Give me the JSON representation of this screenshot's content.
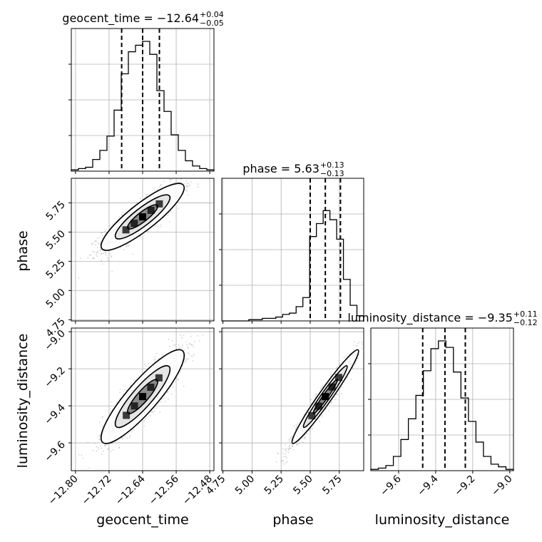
{
  "chart_data": {
    "type": "corner",
    "parameters": [
      "geocent_time",
      "phase",
      "luminosity_distance"
    ],
    "titles": [
      {
        "name": "geocent_time",
        "prefix": "geocent_time = ",
        "median": "−12.64",
        "plus": "+0.04",
        "minus": "−0.05"
      },
      {
        "name": "phase",
        "prefix": "phase = ",
        "median": "5.63",
        "plus": "+0.13",
        "minus": "−0.13"
      },
      {
        "name": "luminosity_distance",
        "prefix": "luminosity_distance = ",
        "median": "−9.35",
        "plus": "+0.11",
        "minus": "−0.12"
      }
    ],
    "axes": {
      "geocent_time": {
        "range": [
          -12.81,
          -12.47
        ],
        "ticks": [
          -12.8,
          -12.72,
          -12.64,
          -12.56,
          -12.48
        ],
        "tick_labels": [
          "−12.80",
          "−12.72",
          "−12.64",
          "−12.56",
          "−12.48"
        ]
      },
      "phase": {
        "range": [
          4.74,
          5.96
        ],
        "ticks": [
          4.75,
          5.0,
          5.25,
          5.5,
          5.75
        ],
        "tick_labels": [
          "4.75",
          "5.00",
          "5.25",
          "5.50",
          "5.75"
        ]
      },
      "luminosity_distance": {
        "range": [
          -9.75,
          -8.98
        ],
        "ticks": [
          -9.6,
          -9.4,
          -9.2,
          -9.0
        ],
        "tick_labels": [
          "−9.6",
          "−9.4",
          "−9.2",
          "−9.0"
        ]
      }
    },
    "quantiles": {
      "geocent_time": [
        -12.69,
        -12.64,
        -12.6
      ],
      "phase": [
        5.5,
        5.63,
        5.76
      ],
      "luminosity_distance": [
        -9.47,
        -9.35,
        -9.24
      ]
    },
    "histograms": {
      "geocent_time": {
        "counts": [
          1,
          2,
          3,
          9,
          16,
          27,
          47,
          75,
          92,
          97,
          100,
          90,
          62,
          46,
          28,
          16,
          8,
          4,
          2,
          1
        ]
      },
      "phase": {
        "counts": [
          0,
          0,
          0,
          0,
          1,
          1,
          2,
          2,
          3,
          5,
          6,
          11,
          18,
          65,
          75,
          85,
          78,
          63,
          32,
          12,
          4
        ]
      },
      "luminosity_distance": {
        "counts": [
          1,
          2,
          4,
          11,
          24,
          40,
          58,
          77,
          94,
          100,
          95,
          76,
          56,
          38,
          22,
          11,
          5,
          3,
          1
        ]
      }
    },
    "correlations": {
      "phase_vs_geocent_time": 0.87,
      "luminosity_distance_vs_geocent_time": 0.88,
      "luminosity_distance_vs_phase": 0.97
    },
    "grid": true,
    "colors": {
      "contour": "#000000",
      "samples": "#808080",
      "density_dark": "#000000"
    }
  }
}
